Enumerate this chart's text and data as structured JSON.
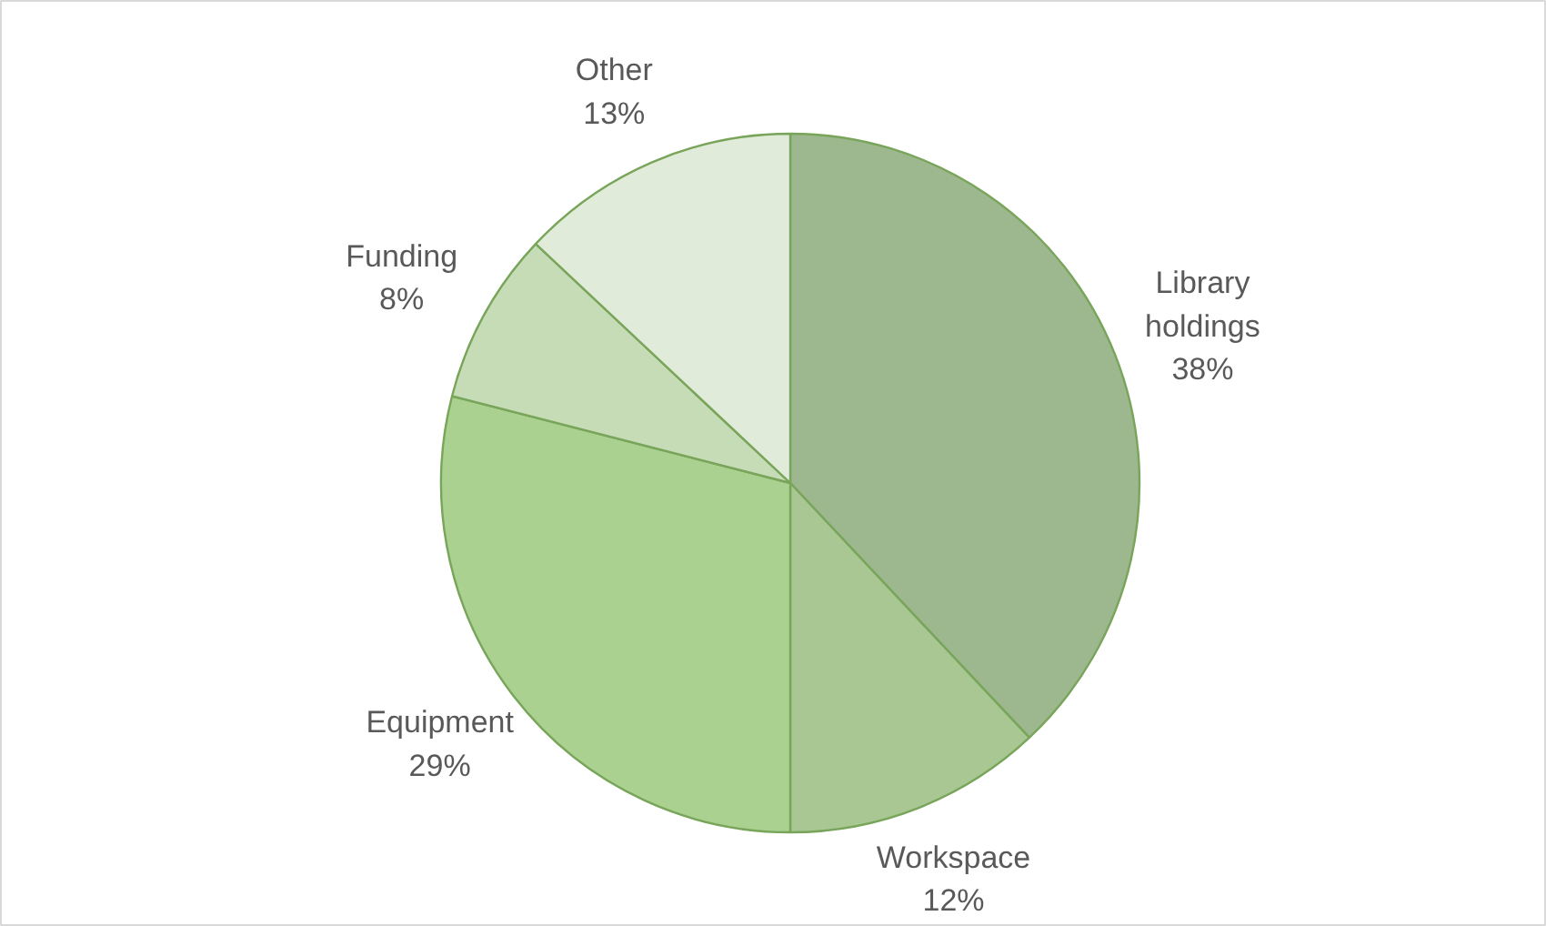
{
  "chart_data": {
    "type": "pie",
    "categories": [
      "Library holdings",
      "Workspace",
      "Equipment",
      "Funding",
      "Other"
    ],
    "values": [
      38,
      12,
      29,
      8,
      13
    ],
    "value_labels": [
      "38%",
      "12%",
      "29%",
      "8%",
      "13%"
    ],
    "colors": [
      "#9db78e",
      "#a8c793",
      "#aad18f",
      "#c6dcb6",
      "#e1ebd9"
    ]
  }
}
